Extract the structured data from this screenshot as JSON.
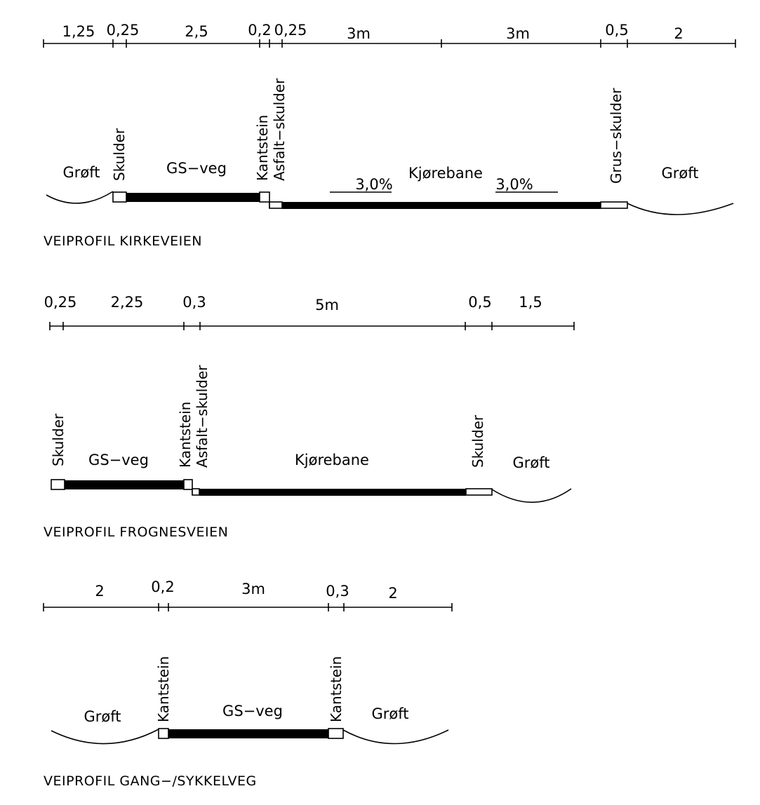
{
  "profiles": [
    {
      "title": "VEIPROFIL KIRKEVEIEN",
      "dimensions": [
        "1,25",
        "0,25",
        "2,5",
        "0,2",
        "0,25",
        "3m",
        "3m",
        "0,5",
        "2"
      ],
      "labels": {
        "groft_left": "Grøft",
        "skulder": "Skulder",
        "gs_veg": "GS−veg",
        "kantstein": "Kantstein",
        "asfalt_skulder": "Asfalt−skulder",
        "kjorebane": "Kjørebane",
        "slope_left": "3,0%",
        "slope_right": "3,0%",
        "grus_skulder": "Grus−skulder",
        "groft_right": "Grøft"
      }
    },
    {
      "title": "VEIPROFIL FROGNESVEIEN",
      "dimensions": [
        "0,25",
        "2,25",
        "0,3",
        "5m",
        "0,5",
        "1,5"
      ],
      "labels": {
        "skulder_left": "Skulder",
        "gs_veg": "GS−veg",
        "kantstein": "Kantstein",
        "asfalt_skulder": "Asfalt−skulder",
        "kjorebane": "Kjørebane",
        "skulder_right": "Skulder",
        "groft": "Grøft"
      }
    },
    {
      "title": "VEIPROFIL GANG−/SYKKELVEG",
      "dimensions": [
        "2",
        "0,2",
        "3m",
        "0,3",
        "2"
      ],
      "labels": {
        "groft_left": "Grøft",
        "kantstein_left": "Kantstein",
        "gs_veg": "GS−veg",
        "kantstein_right": "Kantstein",
        "groft_right": "Grøft"
      }
    }
  ]
}
